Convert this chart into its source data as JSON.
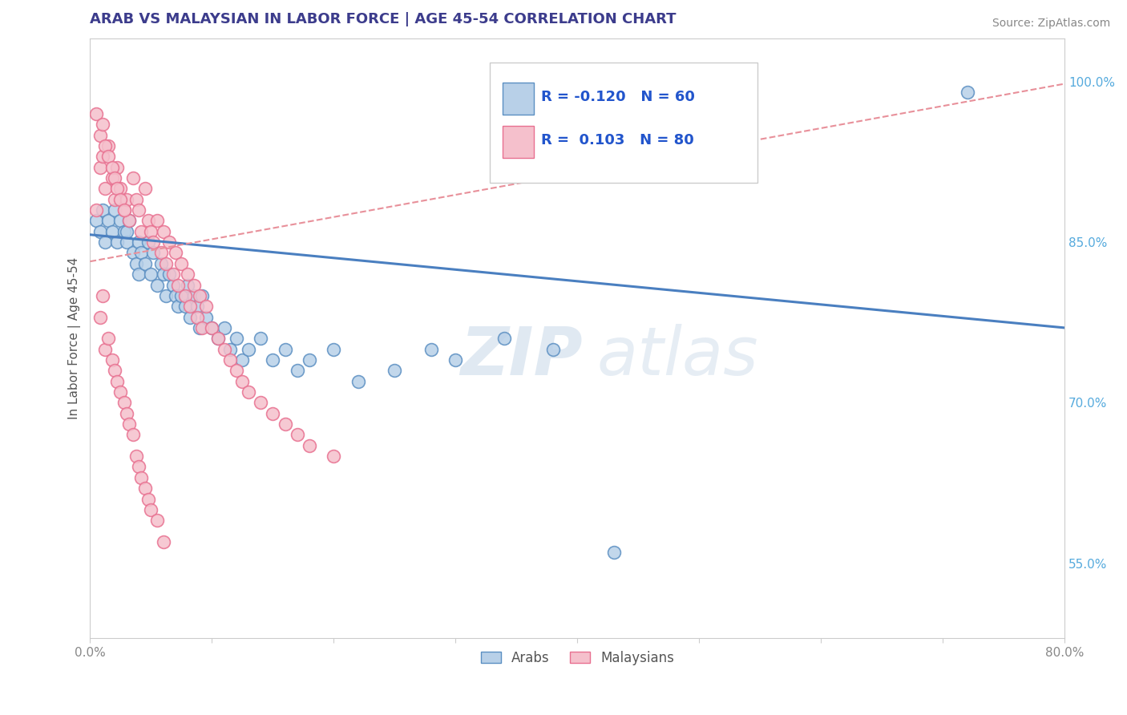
{
  "title": "ARAB VS MALAYSIAN IN LABOR FORCE | AGE 45-54 CORRELATION CHART",
  "source_text": "Source: ZipAtlas.com",
  "ylabel": "In Labor Force | Age 45-54",
  "x_min": 0.0,
  "x_max": 0.8,
  "y_min": 0.48,
  "y_max": 1.04,
  "y_ticks": [
    0.55,
    0.7,
    0.85,
    1.0
  ],
  "y_tick_labels": [
    "55.0%",
    "70.0%",
    "85.0%",
    "100.0%"
  ],
  "arab_color": "#b8d0e8",
  "arab_edge_color": "#5b8fc2",
  "malay_color": "#f5c0cc",
  "malay_edge_color": "#e87090",
  "arab_line_color": "#4a7fc0",
  "malay_line_color": "#e8909a",
  "arab_R": -0.12,
  "arab_N": 60,
  "malay_R": 0.103,
  "malay_N": 80,
  "legend_label_arab": "Arabs",
  "legend_label_malay": "Malaysians",
  "watermark_zip": "ZIP",
  "watermark_atlas": "atlas",
  "title_color": "#3c3c8c",
  "axis_label_color": "#555555",
  "tick_color": "#888888",
  "right_tick_color": "#55aadd",
  "grid_color": "#cccccc",
  "source_color": "#888888",
  "legend_R_color": "#2255cc",
  "arab_scatter_x": [
    0.005,
    0.008,
    0.01,
    0.012,
    0.015,
    0.018,
    0.02,
    0.022,
    0.025,
    0.028,
    0.03,
    0.03,
    0.032,
    0.035,
    0.038,
    0.04,
    0.04,
    0.042,
    0.045,
    0.048,
    0.05,
    0.052,
    0.055,
    0.058,
    0.06,
    0.062,
    0.065,
    0.068,
    0.07,
    0.072,
    0.075,
    0.078,
    0.08,
    0.082,
    0.085,
    0.088,
    0.09,
    0.092,
    0.095,
    0.1,
    0.105,
    0.11,
    0.115,
    0.12,
    0.125,
    0.13,
    0.14,
    0.15,
    0.16,
    0.17,
    0.18,
    0.2,
    0.22,
    0.25,
    0.28,
    0.3,
    0.34,
    0.38,
    0.43,
    0.72
  ],
  "arab_scatter_y": [
    0.87,
    0.86,
    0.88,
    0.85,
    0.87,
    0.86,
    0.88,
    0.85,
    0.87,
    0.86,
    0.85,
    0.86,
    0.87,
    0.84,
    0.83,
    0.85,
    0.82,
    0.84,
    0.83,
    0.85,
    0.82,
    0.84,
    0.81,
    0.83,
    0.82,
    0.8,
    0.82,
    0.81,
    0.8,
    0.79,
    0.8,
    0.79,
    0.81,
    0.78,
    0.8,
    0.79,
    0.77,
    0.8,
    0.78,
    0.77,
    0.76,
    0.77,
    0.75,
    0.76,
    0.74,
    0.75,
    0.76,
    0.74,
    0.75,
    0.73,
    0.74,
    0.75,
    0.72,
    0.73,
    0.75,
    0.74,
    0.76,
    0.75,
    0.56,
    0.99
  ],
  "malay_scatter_x": [
    0.005,
    0.008,
    0.01,
    0.012,
    0.015,
    0.018,
    0.02,
    0.022,
    0.025,
    0.028,
    0.03,
    0.032,
    0.035,
    0.038,
    0.04,
    0.042,
    0.045,
    0.048,
    0.05,
    0.052,
    0.055,
    0.058,
    0.06,
    0.062,
    0.065,
    0.068,
    0.07,
    0.072,
    0.075,
    0.078,
    0.08,
    0.082,
    0.085,
    0.088,
    0.09,
    0.092,
    0.095,
    0.1,
    0.105,
    0.11,
    0.115,
    0.12,
    0.125,
    0.13,
    0.14,
    0.15,
    0.16,
    0.17,
    0.18,
    0.2,
    0.008,
    0.01,
    0.012,
    0.015,
    0.018,
    0.02,
    0.022,
    0.025,
    0.028,
    0.03,
    0.032,
    0.035,
    0.038,
    0.04,
    0.042,
    0.045,
    0.048,
    0.05,
    0.055,
    0.06,
    0.005,
    0.008,
    0.01,
    0.012,
    0.015,
    0.018,
    0.02,
    0.022,
    0.025,
    0.028
  ],
  "malay_scatter_y": [
    0.88,
    0.92,
    0.93,
    0.9,
    0.94,
    0.91,
    0.89,
    0.92,
    0.9,
    0.88,
    0.89,
    0.87,
    0.91,
    0.89,
    0.88,
    0.86,
    0.9,
    0.87,
    0.86,
    0.85,
    0.87,
    0.84,
    0.86,
    0.83,
    0.85,
    0.82,
    0.84,
    0.81,
    0.83,
    0.8,
    0.82,
    0.79,
    0.81,
    0.78,
    0.8,
    0.77,
    0.79,
    0.77,
    0.76,
    0.75,
    0.74,
    0.73,
    0.72,
    0.71,
    0.7,
    0.69,
    0.68,
    0.67,
    0.66,
    0.65,
    0.78,
    0.8,
    0.75,
    0.76,
    0.74,
    0.73,
    0.72,
    0.71,
    0.7,
    0.69,
    0.68,
    0.67,
    0.65,
    0.64,
    0.63,
    0.62,
    0.61,
    0.6,
    0.59,
    0.57,
    0.97,
    0.95,
    0.96,
    0.94,
    0.93,
    0.92,
    0.91,
    0.9,
    0.89,
    0.88
  ]
}
